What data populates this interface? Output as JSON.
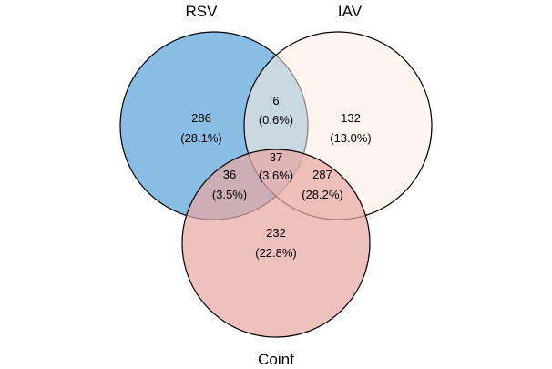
{
  "sets": [
    {
      "key": "rsv",
      "label": "RSV",
      "color": "#7fb7e1"
    },
    {
      "key": "iav",
      "label": "IAV",
      "color": "#fdefe0"
    },
    {
      "key": "coinf",
      "label": "Coinf",
      "color": "#e7a7a5"
    }
  ],
  "regions": [
    {
      "key": "rsv-only",
      "count": "286",
      "percent": "(28.1%)"
    },
    {
      "key": "rsv-iav",
      "count": "6",
      "percent": "(0.6%)"
    },
    {
      "key": "iav-only",
      "count": "132",
      "percent": "(13.0%)"
    },
    {
      "key": "rsv-iav-coinf",
      "count": "37",
      "percent": "(3.6%)"
    },
    {
      "key": "rsv-coinf",
      "count": "36",
      "percent": "(3.5%)"
    },
    {
      "key": "iav-coinf",
      "count": "287",
      "percent": "(28.2%)"
    },
    {
      "key": "coinf-only",
      "count": "232",
      "percent": "(22.8%)"
    }
  ]
}
